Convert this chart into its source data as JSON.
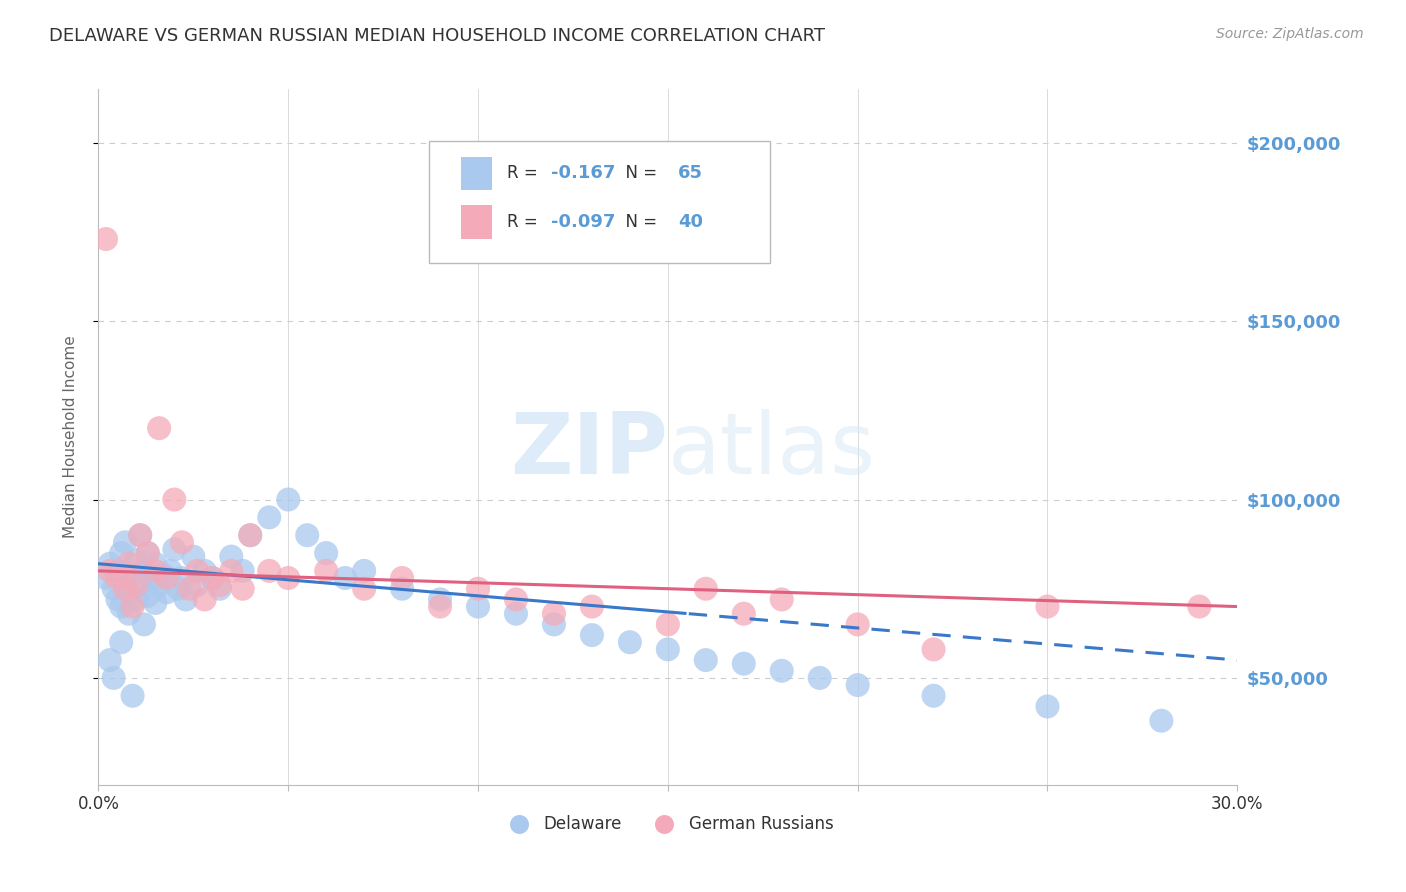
{
  "title": "DELAWARE VS GERMAN RUSSIAN MEDIAN HOUSEHOLD INCOME CORRELATION CHART",
  "source": "Source: ZipAtlas.com",
  "ylabel": "Median Household Income",
  "xlim": [
    0.0,
    0.3
  ],
  "ylim": [
    20000,
    215000
  ],
  "yticks": [
    50000,
    100000,
    150000,
    200000
  ],
  "ytick_labels": [
    "$50,000",
    "$100,000",
    "$150,000",
    "$200,000"
  ],
  "xticks": [
    0.0,
    0.05,
    0.1,
    0.15,
    0.2,
    0.25,
    0.3
  ],
  "watermark": "ZIPatlas",
  "legend_R1": "-0.167",
  "legend_N1": "65",
  "legend_R2": "-0.097",
  "legend_N2": "40",
  "blue_color": "#aac9ee",
  "pink_color": "#f4aab8",
  "blue_line_color": "#3a78c9",
  "pink_line_color": "#e06080",
  "title_color": "#333333",
  "axis_label_color": "#666666",
  "right_label_color": "#5b9bd5",
  "grid_color": "#cccccc",
  "background_color": "#ffffff",
  "del_x": [
    0.002,
    0.003,
    0.004,
    0.005,
    0.005,
    0.006,
    0.006,
    0.007,
    0.007,
    0.008,
    0.008,
    0.009,
    0.01,
    0.01,
    0.011,
    0.011,
    0.012,
    0.013,
    0.013,
    0.014,
    0.015,
    0.015,
    0.016,
    0.017,
    0.018,
    0.019,
    0.02,
    0.021,
    0.022,
    0.023,
    0.025,
    0.026,
    0.028,
    0.03,
    0.032,
    0.035,
    0.038,
    0.04,
    0.045,
    0.05,
    0.055,
    0.06,
    0.065,
    0.07,
    0.08,
    0.09,
    0.1,
    0.11,
    0.12,
    0.13,
    0.14,
    0.15,
    0.16,
    0.17,
    0.18,
    0.19,
    0.2,
    0.22,
    0.25,
    0.28,
    0.003,
    0.004,
    0.006,
    0.009,
    0.012
  ],
  "del_y": [
    78000,
    82000,
    75000,
    80000,
    72000,
    85000,
    70000,
    76000,
    88000,
    74000,
    68000,
    79000,
    83000,
    72000,
    90000,
    76000,
    80000,
    73000,
    85000,
    78000,
    82000,
    71000,
    76000,
    79000,
    74000,
    80000,
    86000,
    75000,
    78000,
    72000,
    84000,
    76000,
    80000,
    78000,
    75000,
    84000,
    80000,
    90000,
    95000,
    100000,
    90000,
    85000,
    78000,
    80000,
    75000,
    72000,
    70000,
    68000,
    65000,
    62000,
    60000,
    58000,
    55000,
    54000,
    52000,
    50000,
    48000,
    45000,
    42000,
    38000,
    55000,
    50000,
    60000,
    45000,
    65000
  ],
  "ger_x": [
    0.002,
    0.003,
    0.005,
    0.007,
    0.008,
    0.009,
    0.01,
    0.011,
    0.013,
    0.015,
    0.016,
    0.018,
    0.02,
    0.022,
    0.024,
    0.026,
    0.028,
    0.03,
    0.032,
    0.035,
    0.038,
    0.04,
    0.045,
    0.05,
    0.06,
    0.07,
    0.08,
    0.09,
    0.1,
    0.11,
    0.12,
    0.13,
    0.15,
    0.16,
    0.17,
    0.18,
    0.2,
    0.22,
    0.25,
    0.29
  ],
  "ger_y": [
    173000,
    80000,
    78000,
    75000,
    82000,
    70000,
    76000,
    90000,
    85000,
    80000,
    120000,
    78000,
    100000,
    88000,
    75000,
    80000,
    72000,
    78000,
    76000,
    80000,
    75000,
    90000,
    80000,
    78000,
    80000,
    75000,
    78000,
    70000,
    75000,
    72000,
    68000,
    70000,
    65000,
    75000,
    68000,
    72000,
    65000,
    58000,
    70000,
    70000
  ]
}
